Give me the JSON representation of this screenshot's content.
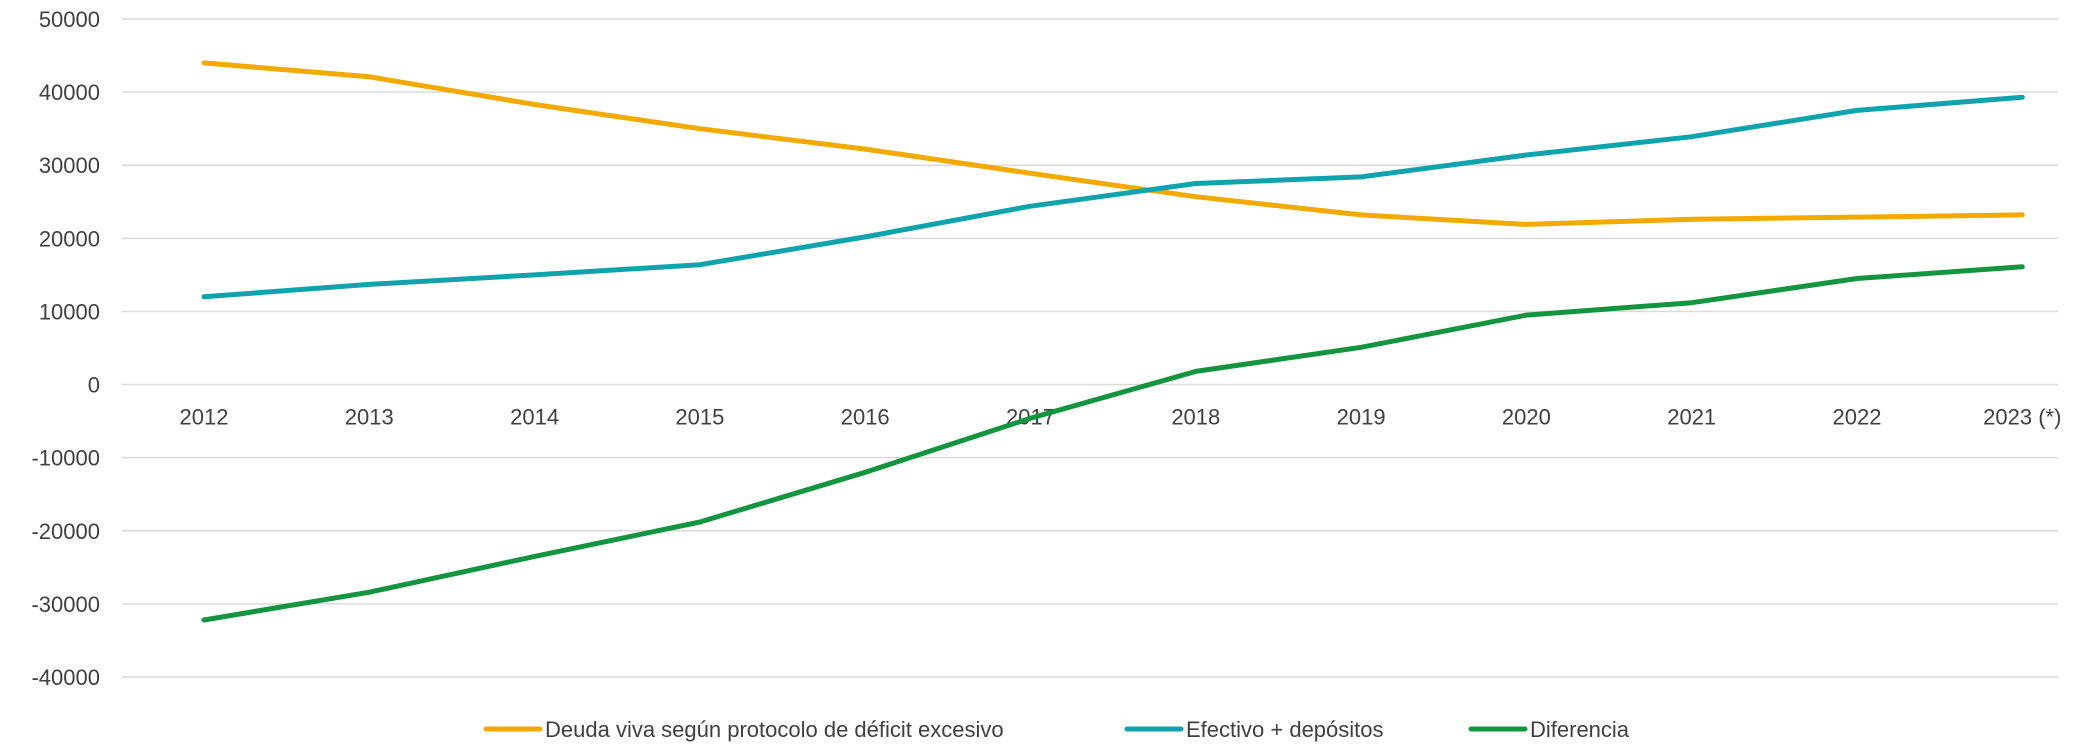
{
  "chart_data": {
    "type": "line",
    "title": "",
    "xlabel": "",
    "ylabel": "",
    "categories": [
      "2012",
      "2013",
      "2014",
      "2015",
      "2016",
      "2017",
      "2018",
      "2019",
      "2020",
      "2021",
      "2022",
      "2023 (*)"
    ],
    "ylim": [
      -40000,
      50000
    ],
    "yticks": [
      50000,
      40000,
      30000,
      20000,
      10000,
      0,
      -10000,
      -20000,
      -30000,
      -40000
    ],
    "grid": true,
    "legend_position": "bottom",
    "series": [
      {
        "name": "Deuda viva según protocolo de déficit excesivo",
        "color": "#F2A900",
        "values": [
          44000,
          42100,
          38300,
          35000,
          32200,
          28900,
          25700,
          23200,
          21900,
          22600,
          22900,
          23200
        ]
      },
      {
        "name": "Efectivo + depósitos",
        "color": "#0FA3AE",
        "values": [
          12000,
          13700,
          15000,
          16400,
          20200,
          24400,
          27500,
          28400,
          31400,
          33900,
          37500,
          39300
        ]
      },
      {
        "name": "Diferencia",
        "color": "#13943E",
        "values": [
          -32200,
          -28400,
          -23500,
          -18800,
          -12000,
          -4600,
          1800,
          5100,
          9500,
          11200,
          14500,
          16100
        ]
      }
    ]
  }
}
